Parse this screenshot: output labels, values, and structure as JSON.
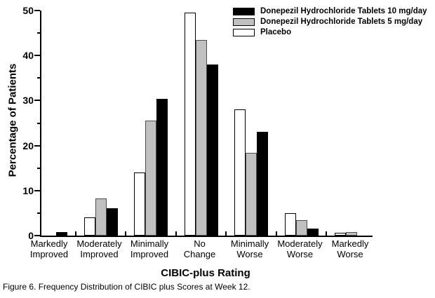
{
  "figure": {
    "caption": "Figure 6. Frequency Distribution of CIBIC plus Scores at Week 12."
  },
  "chart_data": {
    "type": "bar",
    "title": "",
    "xlabel": "CIBIC-plus Rating",
    "ylabel": "Percentage of Patients",
    "ylim": [
      0,
      50
    ],
    "y_major_step": 10,
    "y_minor_step": 5,
    "grid": false,
    "legend_position": "top-right",
    "bar_order_note": "bars drawn left-to-right as Placebo, 5 mg, 10 mg (reverse of legend order)",
    "categories": [
      "Markedly Improved",
      "Moderately Improved",
      "Minimally Improved",
      "No Change",
      "Minimally Worse",
      "Moderately Worse",
      "Markedly Worse"
    ],
    "series": [
      {
        "name": "Donepezil Hydrochloride Tablets 10 mg/day",
        "color": "#000000",
        "border": "#000000",
        "values": [
          0.8,
          6.0,
          30.3,
          38.0,
          23.0,
          1.5,
          0
        ]
      },
      {
        "name": "Donepezil Hydrochloride Tablets 5 mg/day",
        "color": "#c0c0c0",
        "border": "#4d4d4d",
        "values": [
          0,
          8.3,
          25.5,
          43.5,
          18.4,
          3.5,
          0.8
        ]
      },
      {
        "name": "Placebo",
        "color": "#ffffff",
        "border": "#000000",
        "values": [
          0,
          4.0,
          14.0,
          49.5,
          28.0,
          5.0,
          0.7
        ]
      }
    ]
  }
}
